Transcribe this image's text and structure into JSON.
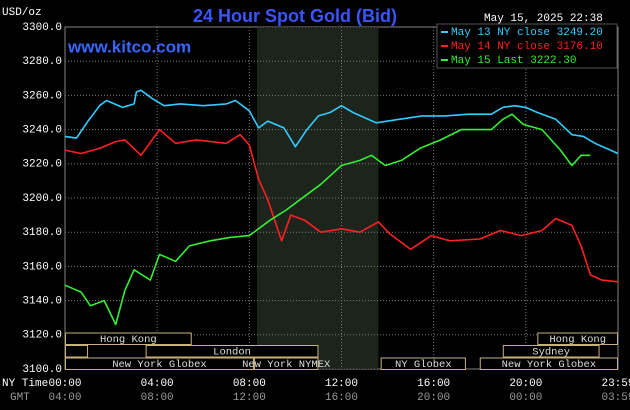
{
  "chart_data": {
    "type": "line",
    "title": "24 Hour Spot Gold (Bid)",
    "y_label": "USD/oz",
    "timestamp": "May 15, 2025 22:38",
    "watermark": "www.kitco.com",
    "x_label": "NY Time",
    "x2_label": "GMT",
    "xlim": [
      0,
      24
    ],
    "xticks": [
      {
        "value": 0,
        "label": "00:00"
      },
      {
        "value": 4,
        "label": "04:00"
      },
      {
        "value": 8,
        "label": "08:00"
      },
      {
        "value": 12,
        "label": "12:00"
      },
      {
        "value": 16,
        "label": "16:00"
      },
      {
        "value": 20,
        "label": "20:00"
      },
      {
        "value": 24,
        "label": "23:59"
      }
    ],
    "x2ticks": [
      {
        "value": 0,
        "label": "04:00"
      },
      {
        "value": 4,
        "label": "08:00"
      },
      {
        "value": 8,
        "label": "12:00"
      },
      {
        "value": 12,
        "label": "16:00"
      },
      {
        "value": 16,
        "label": "20:00"
      },
      {
        "value": 20,
        "label": "00:00"
      },
      {
        "value": 24,
        "label": "03:59"
      }
    ],
    "ylim": [
      3100,
      3300
    ],
    "yticks": [
      {
        "value": 3100,
        "label": "3100.0"
      },
      {
        "value": 3120,
        "label": "3120.0"
      },
      {
        "value": 3140,
        "label": "3140.0"
      },
      {
        "value": 3160,
        "label": "3160.0"
      },
      {
        "value": 3180,
        "label": "3180.0"
      },
      {
        "value": 3200,
        "label": "3200.0"
      },
      {
        "value": 3220,
        "label": "3220.0"
      },
      {
        "value": 3240,
        "label": "3240.0"
      },
      {
        "value": 3260,
        "label": "3260.0"
      },
      {
        "value": 3280,
        "label": "3280.0"
      },
      {
        "value": 3300,
        "label": "3300.0"
      }
    ],
    "grid": true,
    "shaded_range": [
      8.33,
      13.6
    ],
    "series": [
      {
        "name": "May 13 NY close 3249.20",
        "color": "#33ccff",
        "x": [
          0,
          0.5,
          1,
          1.5,
          1.8,
          2.5,
          3,
          3.1,
          3.3,
          3.8,
          4.3,
          5,
          6,
          7,
          7.4,
          8,
          8.4,
          8.8,
          9.5,
          10,
          10.5,
          11,
          11.5,
          12,
          12.5,
          13.5,
          14.5,
          15.5,
          16.5,
          17.5,
          18.5,
          19,
          19.5,
          20,
          20.5,
          21.3,
          22,
          22.5,
          23,
          23.5,
          24
        ],
        "values": [
          3236,
          3235,
          3245,
          3254,
          3257,
          3253,
          3255,
          3262,
          3263,
          3258,
          3254,
          3255,
          3254,
          3255,
          3257,
          3251,
          3241,
          3245,
          3241,
          3230,
          3240,
          3248,
          3250,
          3254,
          3250,
          3244,
          3246,
          3248,
          3248,
          3249,
          3249,
          3253,
          3254,
          3253,
          3250,
          3246,
          3237,
          3236,
          3232,
          3229,
          3226
        ]
      },
      {
        "name": "May 14 NY close 3176.10",
        "color": "#ff2020",
        "x": [
          0,
          0.7,
          1.5,
          2.2,
          2.6,
          3.3,
          4.1,
          4.8,
          5.7,
          7,
          7.6,
          8,
          8.4,
          8.8,
          9.1,
          9.4,
          9.8,
          10.4,
          11.1,
          12,
          12.8,
          13.6,
          14.1,
          15,
          15.9,
          16.7,
          18,
          18.9,
          19.8,
          20.7,
          21.3,
          22,
          22.4,
          22.8,
          23.3,
          24
        ],
        "values": [
          3228,
          3226,
          3229,
          3233,
          3234,
          3225,
          3240,
          3232,
          3234,
          3232,
          3237,
          3231,
          3211,
          3199,
          3187,
          3175,
          3190,
          3187,
          3180,
          3182,
          3180,
          3186,
          3179,
          3170,
          3178,
          3175,
          3176,
          3181,
          3178,
          3181,
          3188,
          3184,
          3172,
          3155,
          3152,
          3151
        ]
      },
      {
        "name": "May 15 Last 3222.30",
        "color": "#33ee33",
        "x": [
          0,
          0.7,
          1.1,
          1.7,
          2.2,
          2.6,
          3.0,
          3.7,
          4.1,
          4.8,
          5.4,
          6.3,
          7.2,
          8,
          8.9,
          9.6,
          10.2,
          11.1,
          12,
          12.8,
          13.3,
          13.9,
          14.6,
          15.4,
          16.3,
          17.2,
          18.5,
          19,
          19.4,
          19.9,
          20.7,
          21.1,
          21.5,
          22,
          22.4,
          22.8
        ],
        "values": [
          3149,
          3145,
          3137,
          3140,
          3126,
          3146,
          3158,
          3152,
          3167,
          3163,
          3172,
          3175,
          3177,
          3178,
          3187,
          3193,
          3199,
          3208,
          3219,
          3222,
          3225,
          3219,
          3222,
          3229,
          3234,
          3240,
          3240,
          3246,
          3249,
          3243,
          3240,
          3234,
          3228,
          3219,
          3225,
          3225
        ]
      }
    ],
    "sessions": [
      [
        {
          "label": "Hong Kong",
          "start": 0,
          "end": 5.5
        },
        {
          "label": "Hong Kong",
          "start": 20.5,
          "end": 24
        }
      ],
      [
        {
          "label": null,
          "start": 0,
          "end": 1
        },
        {
          "label": "London",
          "start": 3.5,
          "end": 11
        },
        {
          "label": "Sydney",
          "start": 19,
          "end": 23.2
        }
      ],
      [
        {
          "label": "New York Globex",
          "start": 0,
          "end": 8.2
        },
        {
          "label": "New York NYMEX",
          "start": 8.2,
          "end": 11
        },
        {
          "label": "NY Globex",
          "start": 13.7,
          "end": 17.4
        },
        {
          "label": "New York Globex",
          "start": 18,
          "end": 24
        }
      ]
    ]
  }
}
